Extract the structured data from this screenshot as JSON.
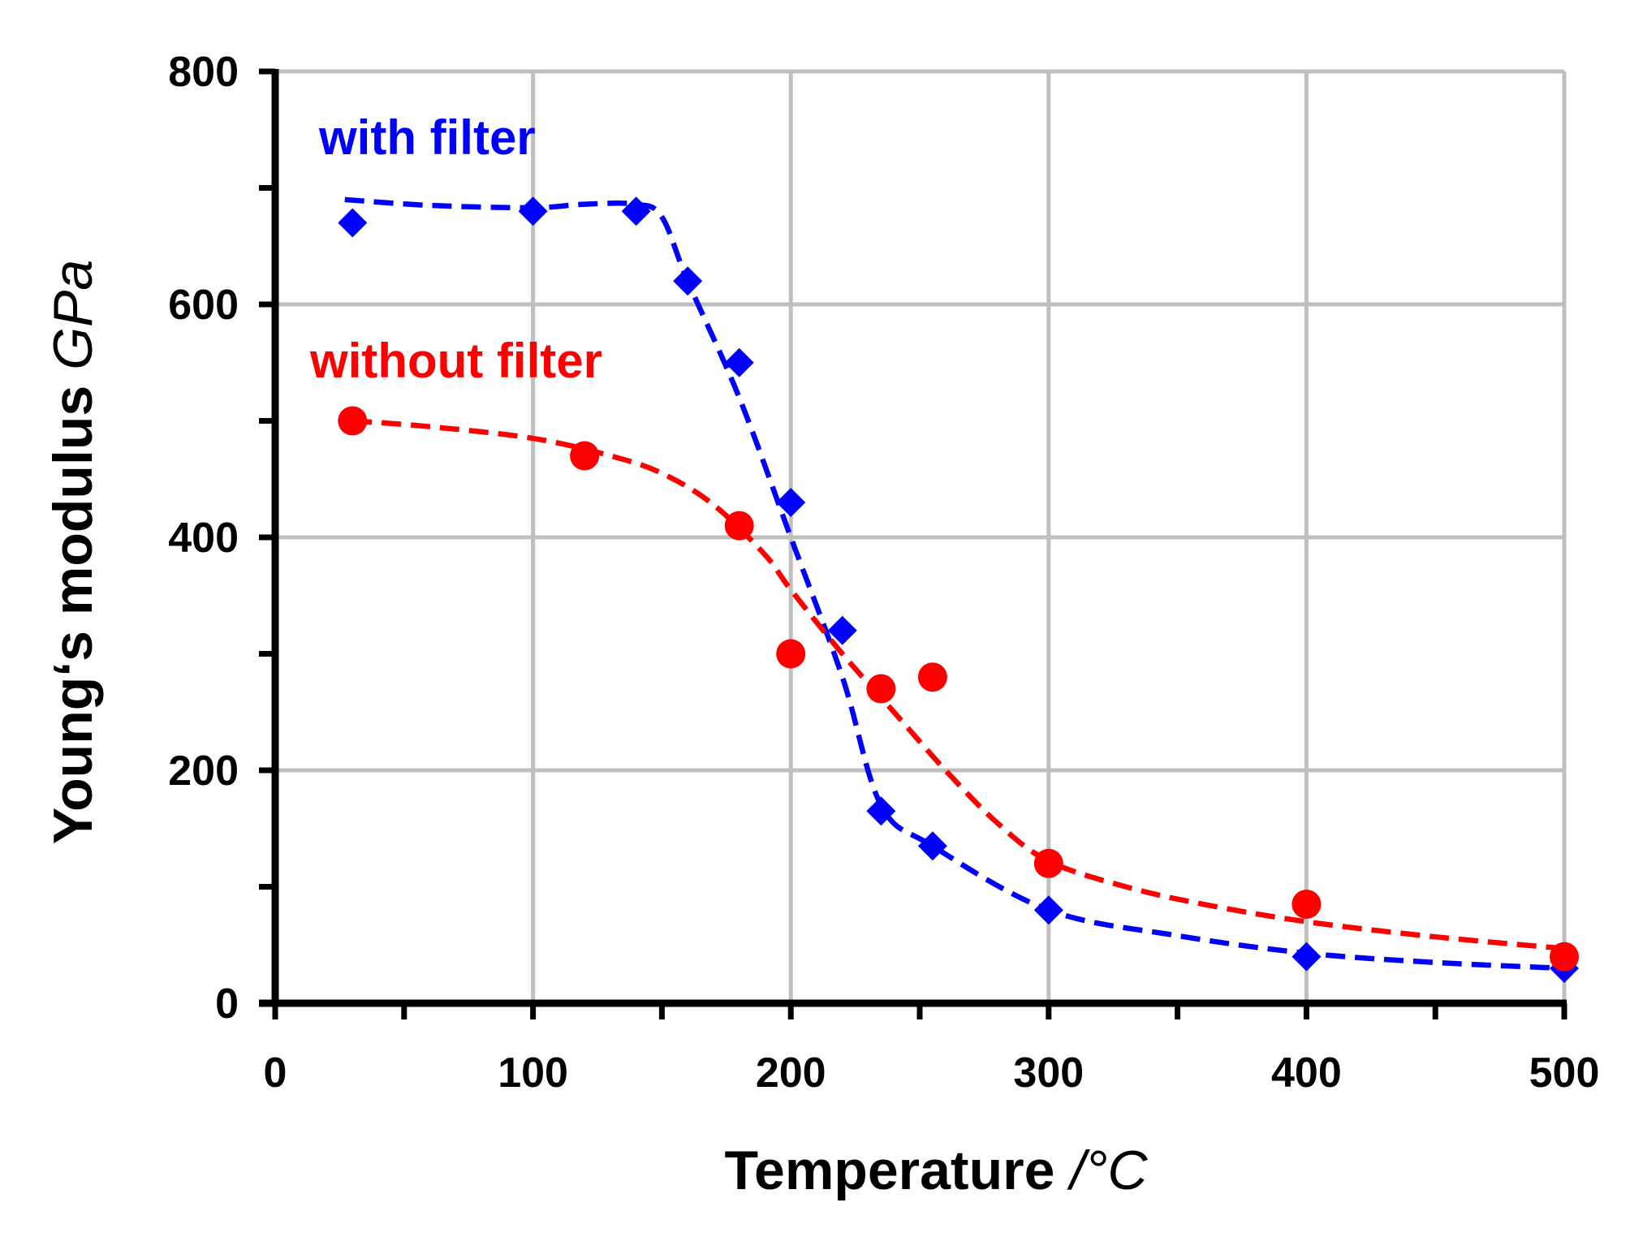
{
  "chart_data": {
    "type": "scatter",
    "title": "",
    "xlabel": {
      "main": "Temperature ",
      "unit": "/°C"
    },
    "ylabel": {
      "main": "Young‘s modulus ",
      "unit": "GPa"
    },
    "xlim": [
      0,
      500
    ],
    "ylim": [
      0,
      800
    ],
    "xticks": [
      0,
      100,
      200,
      300,
      400,
      500
    ],
    "yticks": [
      0,
      200,
      400,
      600,
      800
    ],
    "x_minor_step": 50,
    "y_minor_step": 100,
    "grid": true,
    "series": [
      {
        "name": "with filter",
        "color": "#0000ff",
        "marker": "diamond",
        "x": [
          30,
          100,
          140,
          160,
          180,
          200,
          220,
          235,
          255,
          300,
          400,
          500
        ],
        "y": [
          670,
          680,
          680,
          620,
          550,
          430,
          320,
          165,
          135,
          80,
          40,
          30
        ],
        "fit_x": [
          27,
          60,
          100,
          120,
          140,
          150,
          160,
          180,
          200,
          220,
          235,
          255,
          300,
          350,
          400,
          450,
          500
        ],
        "fit_y": [
          690,
          685,
          683,
          686,
          686,
          675,
          620,
          520,
          400,
          280,
          170,
          135,
          80,
          58,
          43,
          35,
          30
        ]
      },
      {
        "name": "without filter",
        "color": "#ff0000",
        "marker": "circle",
        "x": [
          30,
          120,
          180,
          200,
          235,
          255,
          300,
          400,
          500
        ],
        "y": [
          500,
          470,
          410,
          300,
          270,
          280,
          120,
          85,
          40
        ],
        "fit_x": [
          30,
          60,
          100,
          130,
          150,
          170,
          190,
          200,
          220,
          240,
          260,
          280,
          300,
          330,
          360,
          400,
          450,
          500
        ],
        "fit_y": [
          500,
          495,
          485,
          470,
          455,
          428,
          385,
          355,
          300,
          250,
          200,
          155,
          122,
          100,
          85,
          70,
          57,
          47
        ]
      }
    ]
  }
}
